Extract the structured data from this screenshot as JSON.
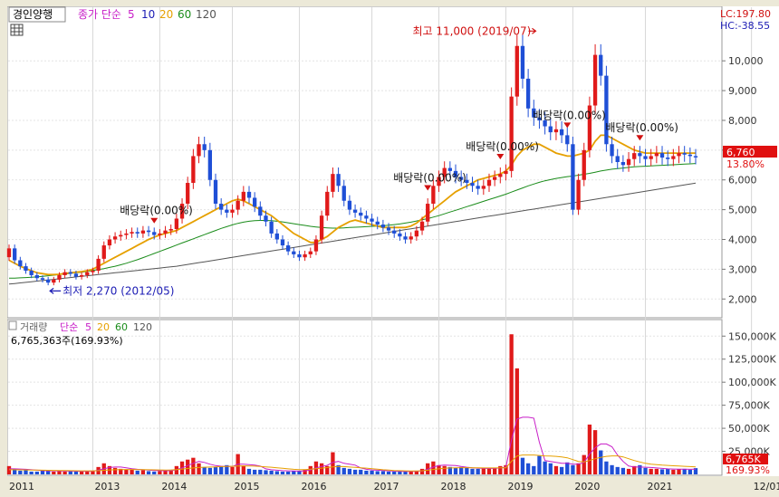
{
  "chart_data": [
    {
      "type": "candlestick",
      "panel": "price",
      "legend": {
        "name": "경인양행",
        "indicator": "종가 단순",
        "periods": [
          "5",
          "10",
          "20",
          "60",
          "120"
        ],
        "colors": [
          "#c81fc8",
          "#1c1cb4",
          "#e6a000",
          "#1a8c1a",
          "#555555"
        ]
      },
      "top_right": {
        "lc": "LC:197.80",
        "hc": "HC:-38.55"
      },
      "y_ticks": [
        {
          "value": 10000,
          "label": "10,000"
        },
        {
          "value": 9000,
          "label": "9,000"
        },
        {
          "value": 8000,
          "label": "8,000"
        },
        {
          "value": 7000,
          "label": "7,000"
        },
        {
          "value": 6000,
          "label": "6,000"
        },
        {
          "value": 5000,
          "label": "5,000"
        },
        {
          "value": 4000,
          "label": "4,000"
        },
        {
          "value": 3000,
          "label": "3,000"
        },
        {
          "value": 2000,
          "label": "2,000"
        }
      ],
      "ylim": [
        1400,
        11800
      ],
      "current": {
        "price": 6760,
        "label": "6,760",
        "pct": "13.80%"
      },
      "annotations": {
        "max": {
          "text": "최고 11,000 (2019/07)",
          "value": 11000,
          "index": 95
        },
        "min": {
          "text": "최저 2,270 (2012/05)",
          "value": 2270,
          "index": 7
        },
        "dividends": [
          {
            "text": "배당락(0.00%)",
            "index": 26
          },
          {
            "text": "배당락(0.00%)",
            "index": 75
          },
          {
            "text": "배당락(0.00%)",
            "index": 88
          },
          {
            "text": "배당락(0.00%)",
            "index": 100
          },
          {
            "text": "배당락(0.00%)",
            "index": 113
          }
        ]
      },
      "x_labels": [
        {
          "label": "2011",
          "index": 0
        },
        {
          "label": "2013",
          "index": 15
        },
        {
          "label": "2014",
          "index": 27
        },
        {
          "label": "2015",
          "index": 40
        },
        {
          "label": "2016",
          "index": 52
        },
        {
          "label": "2017",
          "index": 65
        },
        {
          "label": "2018",
          "index": 77
        },
        {
          "label": "2019",
          "index": 89
        },
        {
          "label": "2020",
          "index": 101
        },
        {
          "label": "2021",
          "index": 114
        },
        {
          "label": "12/01",
          "index": 133
        }
      ],
      "closes": [
        3700,
        3300,
        3100,
        2950,
        2800,
        2700,
        2650,
        2550,
        2650,
        2800,
        2900,
        2850,
        2750,
        2800,
        2900,
        2950,
        3350,
        3800,
        4000,
        4100,
        4150,
        4200,
        4250,
        4200,
        4300,
        4250,
        4150,
        4200,
        4300,
        4350,
        4700,
        5200,
        5900,
        6800,
        7200,
        7000,
        6000,
        5200,
        5000,
        4900,
        5000,
        5300,
        5600,
        5400,
        5100,
        4800,
        4600,
        4200,
        4000,
        3800,
        3600,
        3500,
        3400,
        3500,
        3600,
        4000,
        4800,
        5600,
        6200,
        5800,
        5300,
        5000,
        4900,
        4800,
        4700,
        4600,
        4500,
        4400,
        4300,
        4200,
        4100,
        4000,
        4100,
        4300,
        4600,
        5200,
        5800,
        6100,
        6400,
        6300,
        6100,
        6000,
        5900,
        5800,
        5700,
        5800,
        6000,
        6100,
        6200,
        6300,
        8800,
        10500,
        9400,
        8400,
        8100,
        8000,
        7800,
        7600,
        7700,
        7500,
        7200,
        5000,
        6000,
        7000,
        8500,
        10200,
        9500,
        7200,
        6800,
        6600,
        6500,
        6700,
        6900,
        6800,
        6700,
        6800,
        6900,
        6750,
        6700,
        6800,
        6900,
        6850,
        6800,
        6760
      ],
      "ma20": [
        3300,
        3200,
        3100,
        3020,
        2950,
        2880,
        2850,
        2820,
        2820,
        2830,
        2860,
        2880,
        2900,
        2920,
        2950,
        3000,
        3100,
        3200,
        3300,
        3400,
        3500,
        3600,
        3700,
        3800,
        3900,
        4000,
        4080,
        4150,
        4200,
        4250,
        4300,
        4400,
        4500,
        4600,
        4700,
        4800,
        4900,
        5000,
        5100,
        5200,
        5300,
        5350,
        5300,
        5200,
        5100,
        5000,
        4900,
        4800,
        4650,
        4500,
        4350,
        4200,
        4100,
        4000,
        3900,
        3900,
        4000,
        4100,
        4250,
        4400,
        4500,
        4600,
        4650,
        4600,
        4550,
        4500,
        4450,
        4400,
        4400,
        4400,
        4400,
        4400,
        4450,
        4550,
        4700,
        4850,
        5000,
        5150,
        5300,
        5450,
        5600,
        5700,
        5800,
        5900,
        6000,
        6050,
        6100,
        6150,
        6200,
        6300,
        6500,
        6800,
        7000,
        7100,
        7200,
        7200,
        7100,
        7000,
        6900,
        6850,
        6800,
        6800,
        6850,
        6900,
        7000,
        7300,
        7500,
        7500,
        7400,
        7300,
        7200,
        7100,
        7000,
        6950,
        6900,
        6900,
        6900,
        6900,
        6900,
        6900,
        6900,
        6900,
        6900,
        6900
      ],
      "ma60": [
        2700,
        2700,
        2710,
        2720,
        2730,
        2740,
        2760,
        2780,
        2800,
        2820,
        2840,
        2860,
        2880,
        2900,
        2930,
        2960,
        2990,
        3020,
        3060,
        3100,
        3150,
        3200,
        3260,
        3320,
        3390,
        3460,
        3530,
        3600,
        3670,
        3740,
        3810,
        3880,
        3950,
        4020,
        4090,
        4160,
        4230,
        4300,
        4370,
        4430,
        4490,
        4540,
        4580,
        4610,
        4630,
        4640,
        4640,
        4630,
        4610,
        4590,
        4560,
        4530,
        4500,
        4470,
        4440,
        4420,
        4400,
        4390,
        4380,
        4380,
        4390,
        4400,
        4410,
        4420,
        4430,
        4440,
        4450,
        4460,
        4480,
        4500,
        4520,
        4550,
        4580,
        4620,
        4660,
        4700,
        4750,
        4800,
        4860,
        4920,
        4980,
        5040,
        5100,
        5160,
        5220,
        5280,
        5340,
        5400,
        5460,
        5520,
        5590,
        5660,
        5730,
        5800,
        5860,
        5920,
        5970,
        6010,
        6050,
        6080,
        6110,
        6130,
        6160,
        6190,
        6220,
        6260,
        6300,
        6330,
        6360,
        6380,
        6400,
        6420,
        6440,
        6450,
        6460,
        6470,
        6480,
        6490,
        6500,
        6510,
        6520,
        6530,
        6540,
        6550
      ],
      "ma120": [
        2500,
        2520,
        2540,
        2560,
        2580,
        2600,
        2620,
        2640,
        2660,
        2680,
        2700,
        2720,
        2740,
        2760,
        2780,
        2800,
        2820,
        2840,
        2860,
        2880,
        2900,
        2920,
        2940,
        2960,
        2980,
        3000,
        3020,
        3040,
        3060,
        3080,
        3100,
        3130,
        3160,
        3190,
        3220,
        3250,
        3280,
        3310,
        3340,
        3370,
        3400,
        3430,
        3460,
        3490,
        3520,
        3550,
        3580,
        3610,
        3640,
        3670,
        3700,
        3730,
        3760,
        3790,
        3820,
        3850,
        3880,
        3910,
        3940,
        3970,
        4000,
        4030,
        4060,
        4090,
        4120,
        4150,
        4180,
        4210,
        4240,
        4270,
        4300,
        4330,
        4360,
        4390,
        4420,
        4450,
        4480,
        4510,
        4540,
        4570,
        4600,
        4630,
        4660,
        4690,
        4720,
        4750,
        4780,
        4810,
        4840,
        4870,
        4900,
        4930,
        4960,
        4990,
        5020,
        5050,
        5080,
        5110,
        5140,
        5170,
        5200,
        5230,
        5260,
        5290,
        5320,
        5350,
        5380,
        5410,
        5440,
        5470,
        5500,
        5530,
        5560,
        5590,
        5620,
        5650,
        5680,
        5710,
        5740,
        5770,
        5800,
        5830,
        5860,
        5890
      ]
    },
    {
      "type": "bar",
      "panel": "volume",
      "legend": {
        "name": "거래량",
        "indicator": "단순",
        "periods": [
          "5",
          "20",
          "60",
          "120"
        ],
        "colors": [
          "#c81fc8",
          "#e6a000",
          "#1a8c1a",
          "#555555"
        ]
      },
      "current_text": "6,765,363주(169.93%)",
      "current": {
        "value": 6765,
        "label": "6,765K",
        "pct": "169.93%"
      },
      "y_ticks": [
        {
          "value": 150000,
          "label": "150,000K"
        },
        {
          "value": 125000,
          "label": "125,000K"
        },
        {
          "value": 100000,
          "label": "100,000K"
        },
        {
          "value": 75000,
          "label": "75,000K"
        },
        {
          "value": 50000,
          "label": "50,000K"
        },
        {
          "value": 25000,
          "label": "25,000K"
        }
      ],
      "ylim": [
        0,
        165000
      ],
      "unit": "K",
      "values": [
        9000,
        6000,
        4000,
        5000,
        3000,
        3000,
        4000,
        4000,
        3000,
        4000,
        3000,
        3500,
        3000,
        3000,
        3500,
        4000,
        8000,
        12000,
        9000,
        7000,
        6000,
        5000,
        5000,
        4000,
        4500,
        3500,
        3000,
        3500,
        4000,
        5000,
        9000,
        14000,
        16000,
        18000,
        12000,
        8000,
        7000,
        8000,
        9000,
        10000,
        8000,
        22000,
        9000,
        6000,
        5000,
        5000,
        4500,
        4000,
        3500,
        3000,
        3000,
        3500,
        3500,
        5000,
        9000,
        14000,
        12000,
        9000,
        24000,
        10000,
        7000,
        6000,
        5000,
        5000,
        4000,
        4000,
        3500,
        3500,
        3000,
        3000,
        3000,
        3000,
        3500,
        4000,
        6000,
        12000,
        14000,
        10000,
        9000,
        8000,
        7000,
        8000,
        7000,
        6000,
        6000,
        6500,
        7000,
        7000,
        9000,
        10000,
        152000,
        115000,
        18000,
        12000,
        9000,
        20000,
        14000,
        12000,
        9000,
        8000,
        13000,
        10000,
        12000,
        21000,
        54000,
        48000,
        26000,
        14000,
        10000,
        8000,
        7000,
        6000,
        9000,
        10000,
        7000,
        6000,
        6000,
        5500,
        6000,
        5000,
        5500,
        6000,
        5000,
        6765
      ],
      "ma5": [
        6000,
        6000,
        5800,
        5500,
        5000,
        4500,
        4000,
        3800,
        3800,
        3600,
        3500,
        3500,
        3400,
        3300,
        3300,
        3500,
        4500,
        6000,
        7500,
        8000,
        8000,
        7200,
        6200,
        5500,
        5000,
        4600,
        4200,
        4000,
        3900,
        4000,
        5000,
        7000,
        9500,
        12000,
        14000,
        13000,
        11000,
        9500,
        8800,
        8500,
        8500,
        11000,
        11000,
        10500,
        10000,
        9000,
        6000,
        5000,
        4500,
        4000,
        3800,
        3600,
        3500,
        3800,
        4800,
        7000,
        8500,
        9800,
        13000,
        14000,
        12000,
        11000,
        10000,
        7000,
        5500,
        4800,
        4500,
        4200,
        3800,
        3500,
        3300,
        3200,
        3200,
        3300,
        3800,
        5500,
        8000,
        9500,
        10000,
        9800,
        9500,
        8500,
        7800,
        7200,
        6800,
        6500,
        6400,
        6500,
        7000,
        7800,
        37000,
        60000,
        62000,
        62000,
        61000,
        35000,
        15000,
        14000,
        13000,
        12000,
        12000,
        11000,
        11000,
        13000,
        22000,
        29000,
        33000,
        33000,
        30000,
        21000,
        14000,
        9000,
        8000,
        8000,
        7800,
        7500,
        7000,
        6500,
        6000,
        5800,
        5600,
        5600,
        5500,
        5650
      ],
      "ma20": [
        5000,
        5000,
        4900,
        4800,
        4700,
        4600,
        4500,
        4400,
        4300,
        4200,
        4100,
        4000,
        3900,
        3800,
        3800,
        3800,
        4000,
        4400,
        4800,
        5000,
        5200,
        5300,
        5300,
        5200,
        5100,
        5000,
        4900,
        4800,
        4700,
        4800,
        5200,
        5800,
        6400,
        7000,
        7500,
        7800,
        8000,
        8200,
        8400,
        8500,
        8700,
        9000,
        9200,
        9100,
        8900,
        8600,
        8200,
        7800,
        7200,
        6600,
        6000,
        5500,
        5200,
        5200,
        5600,
        6200,
        6800,
        7400,
        8200,
        8600,
        8400,
        8000,
        7600,
        7200,
        6800,
        6200,
        5600,
        5000,
        4600,
        4200,
        4000,
        3800,
        3700,
        3700,
        3900,
        4500,
        5300,
        6000,
        6600,
        7000,
        7200,
        7300,
        7300,
        7200,
        7100,
        7000,
        7000,
        7000,
        7100,
        7200,
        14000,
        20000,
        21000,
        21000,
        21000,
        20500,
        20000,
        19800,
        19500,
        19000,
        18000,
        16000,
        14000,
        13500,
        15000,
        17000,
        18500,
        19500,
        20000,
        20000,
        19000,
        17000,
        15000,
        13500,
        12000,
        11000,
        10500,
        10000,
        9700,
        9300,
        9000,
        8700,
        8400,
        8200
      ]
    }
  ]
}
